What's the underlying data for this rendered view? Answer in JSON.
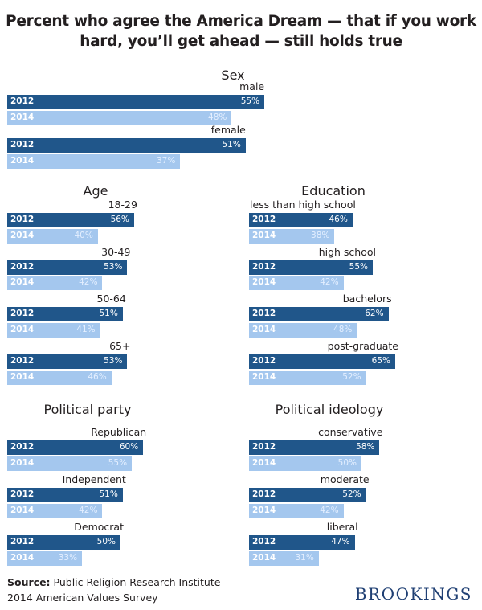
{
  "title_lines": [
    "Percent who agree the America Dream — that if you work",
    "hard, you’ll get ahead — still holds true"
  ],
  "colors": {
    "y2012": "#20568a",
    "y2014": "#a4c7ee"
  },
  "chart_data": [
    {
      "type": "bar",
      "title": "Sex",
      "series_names": [
        "2012",
        "2014"
      ],
      "categories": [
        "male",
        "female"
      ],
      "series": [
        {
          "name": "2012",
          "values": [
            55,
            51
          ]
        },
        {
          "name": "2014",
          "values": [
            48,
            37
          ]
        }
      ],
      "unit": "%"
    },
    {
      "type": "bar",
      "title": "Age",
      "categories": [
        "18-29",
        "30-49",
        "50-64",
        "65+"
      ],
      "series": [
        {
          "name": "2012",
          "values": [
            56,
            53,
            51,
            53
          ]
        },
        {
          "name": "2014",
          "values": [
            40,
            42,
            41,
            46
          ]
        }
      ],
      "unit": "%"
    },
    {
      "type": "bar",
      "title": "Education",
      "categories": [
        "less than high school",
        "high school",
        "bachelors",
        "post-graduate"
      ],
      "series": [
        {
          "name": "2012",
          "values": [
            46,
            55,
            62,
            65
          ]
        },
        {
          "name": "2014",
          "values": [
            38,
            42,
            48,
            52
          ]
        }
      ],
      "unit": "%"
    },
    {
      "type": "bar",
      "title": "Political party",
      "categories": [
        "Republican",
        "Independent",
        "Democrat"
      ],
      "series": [
        {
          "name": "2012",
          "values": [
            60,
            51,
            50
          ]
        },
        {
          "name": "2014",
          "values": [
            55,
            42,
            33
          ]
        }
      ],
      "unit": "%"
    },
    {
      "type": "bar",
      "title": "Political ideology",
      "categories": [
        "conservative",
        "moderate",
        "liberal"
      ],
      "series": [
        {
          "name": "2012",
          "values": [
            58,
            52,
            47
          ]
        },
        {
          "name": "2014",
          "values": [
            50,
            42,
            31
          ]
        }
      ],
      "unit": "%"
    }
  ],
  "source": {
    "label": "Source:",
    "line1": "Public Religion Research Institute",
    "line2": "2014 American Values Survey"
  },
  "brand": "BROOKINGS"
}
